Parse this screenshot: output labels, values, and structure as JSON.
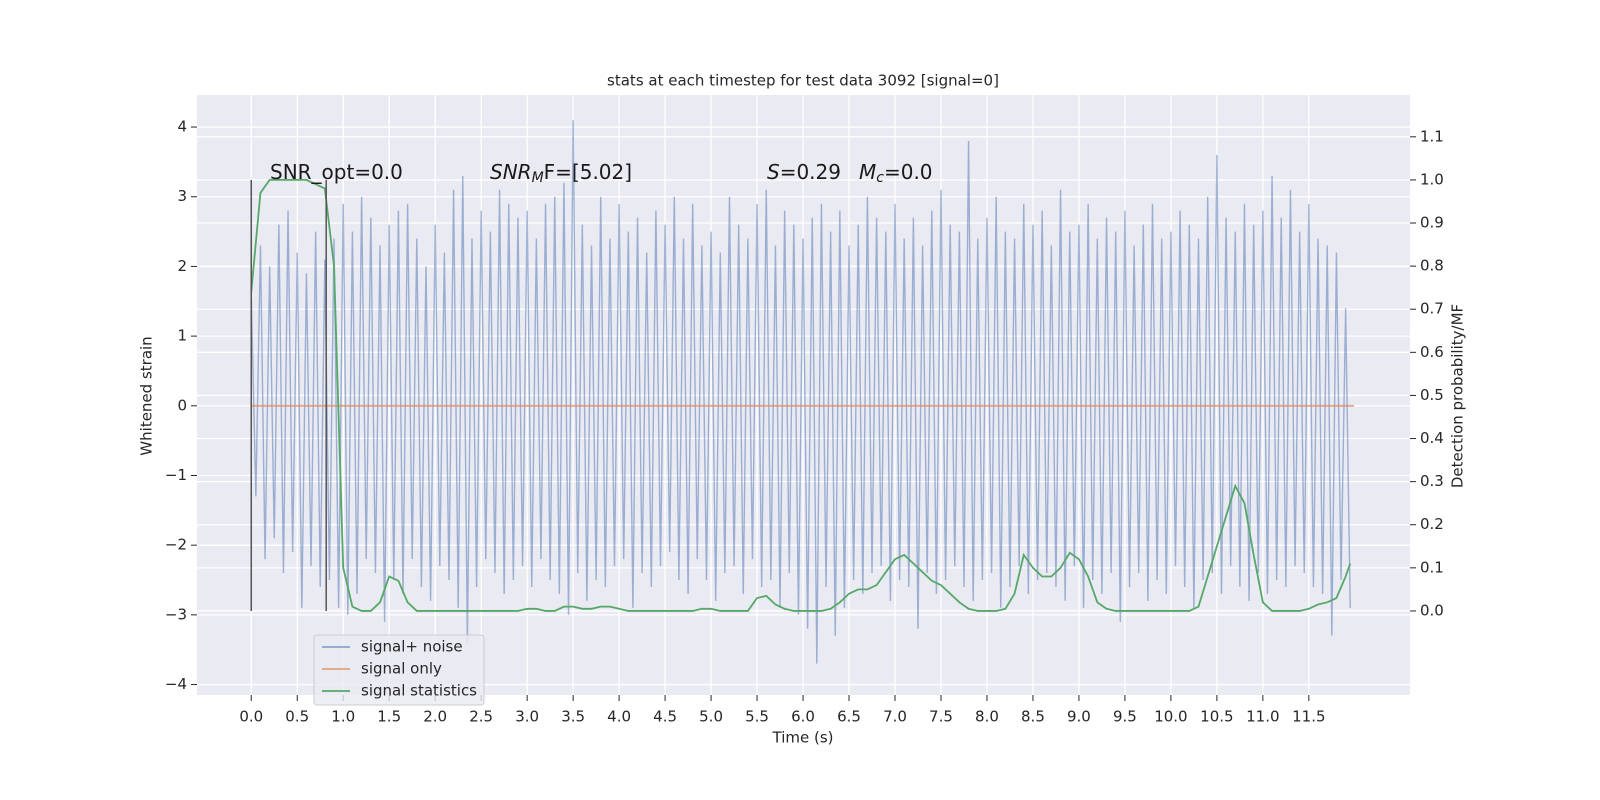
{
  "chart_data": {
    "type": "line",
    "title": "stats at each timestep for test data 3092 [signal=0]",
    "xlabel": "Time (s)",
    "ylabel": "Whitened strain",
    "y2label": "Detection probability/MF",
    "xlim": [
      -0.59,
      12.6
    ],
    "ylim": [
      -4.15,
      4.46
    ],
    "y2lim": [
      -0.195,
      1.197
    ],
    "xticks": [
      {
        "value": 0,
        "label": "0.0"
      },
      0.5,
      {
        "value": 1,
        "label": "1.0"
      },
      1.5,
      {
        "value": 2,
        "label": "2.0"
      },
      2.5,
      {
        "value": 3,
        "label": "3.0"
      },
      3.5,
      {
        "value": 4,
        "label": "4.0"
      },
      4.5,
      {
        "value": 5,
        "label": "5.0"
      },
      5.5,
      {
        "value": 6,
        "label": "6.0"
      },
      6.5,
      {
        "value": 7,
        "label": "7.0"
      },
      7.5,
      {
        "value": 8,
        "label": "8.0"
      },
      8.5,
      {
        "value": 9,
        "label": "9.0"
      },
      9.5,
      {
        "value": 10,
        "label": "10.0"
      },
      10.5,
      {
        "value": 11,
        "label": "11.0"
      },
      11.5
    ],
    "yticks": [
      {
        "value": -4,
        "label": "−4"
      },
      {
        "value": -3,
        "label": "−3"
      },
      {
        "value": -2,
        "label": "−2"
      },
      {
        "value": -1,
        "label": "−1"
      },
      0,
      1,
      2,
      3,
      4
    ],
    "y2ticks": [
      {
        "value": 0,
        "label": "0.0"
      },
      0.1,
      0.2,
      0.3,
      0.4,
      0.5,
      0.6,
      0.7,
      0.8,
      0.9,
      {
        "value": 1,
        "label": "1.0"
      },
      1.1
    ],
    "grid": true,
    "legend": "lower left",
    "annotations": [
      {
        "text": "SNR_opt=0.0"
      },
      {
        "base": "SNR",
        "sub": "M",
        "rest": "F=[5.02]"
      },
      {
        "base": "S",
        "rest": "=0.29"
      },
      {
        "base": "M",
        "sub": "c",
        "rest": "=0.0"
      }
    ],
    "vlines": {
      "x": [
        0,
        0.815
      ],
      "ymin": 0,
      "ymax": 1,
      "axis": "y2",
      "color": "#555555"
    },
    "series": [
      {
        "name": "signal+ noise",
        "color": "#4c72b0",
        "x": [
          0,
          0.05,
          0.1,
          0.15,
          0.2,
          0.25,
          0.3,
          0.35,
          0.4,
          0.45,
          0.5,
          0.55,
          0.6,
          0.65,
          0.7,
          0.75,
          0.8,
          0.85,
          0.9,
          0.95,
          1,
          1.05,
          1.1,
          1.15,
          1.2,
          1.25,
          1.3,
          1.35,
          1.4,
          1.45,
          1.5,
          1.55,
          1.6,
          1.65,
          1.7,
          1.75,
          1.8,
          1.85,
          1.9,
          1.95,
          2,
          2.05,
          2.1,
          2.15,
          2.2,
          2.25,
          2.3,
          2.35,
          2.4,
          2.45,
          2.5,
          2.55,
          2.6,
          2.65,
          2.7,
          2.75,
          2.8,
          2.85,
          2.9,
          2.95,
          3,
          3.05,
          3.1,
          3.15,
          3.2,
          3.25,
          3.3,
          3.35,
          3.4,
          3.45,
          3.5,
          3.55,
          3.6,
          3.65,
          3.7,
          3.75,
          3.8,
          3.85,
          3.9,
          3.95,
          4,
          4.05,
          4.1,
          4.15,
          4.2,
          4.25,
          4.3,
          4.35,
          4.4,
          4.45,
          4.5,
          4.55,
          4.6,
          4.65,
          4.7,
          4.75,
          4.8,
          4.85,
          4.9,
          4.95,
          5,
          5.05,
          5.1,
          5.15,
          5.2,
          5.25,
          5.3,
          5.35,
          5.4,
          5.45,
          5.5,
          5.55,
          5.6,
          5.65,
          5.7,
          5.75,
          5.8,
          5.85,
          5.9,
          5.95,
          6,
          6.05,
          6.1,
          6.15,
          6.2,
          6.25,
          6.3,
          6.35,
          6.4,
          6.45,
          6.5,
          6.55,
          6.6,
          6.65,
          6.7,
          6.75,
          6.8,
          6.85,
          6.9,
          6.95,
          7,
          7.05,
          7.1,
          7.15,
          7.2,
          7.25,
          7.3,
          7.35,
          7.4,
          7.45,
          7.5,
          7.55,
          7.6,
          7.65,
          7.7,
          7.75,
          7.8,
          7.85,
          7.9,
          7.95,
          8,
          8.05,
          8.1,
          8.15,
          8.2,
          8.25,
          8.3,
          8.35,
          8.4,
          8.45,
          8.5,
          8.55,
          8.6,
          8.65,
          8.7,
          8.75,
          8.8,
          8.85,
          8.9,
          8.95,
          9,
          9.05,
          9.1,
          9.15,
          9.2,
          9.25,
          9.3,
          9.35,
          9.4,
          9.45,
          9.5,
          9.55,
          9.6,
          9.65,
          9.7,
          9.75,
          9.8,
          9.85,
          9.9,
          9.95,
          10,
          10.05,
          10.1,
          10.15,
          10.2,
          10.25,
          10.3,
          10.35,
          10.4,
          10.45,
          10.5,
          10.55,
          10.6,
          10.65,
          10.7,
          10.75,
          10.8,
          10.85,
          10.9,
          10.95,
          11,
          11.05,
          11.1,
          11.15,
          11.2,
          11.25,
          11.3,
          11.35,
          11.4,
          11.45,
          11.5,
          11.55,
          11.6,
          11.65,
          11.7,
          11.75,
          11.8,
          11.85,
          11.9,
          11.95
        ],
        "values": [
          1.6,
          -1.3,
          2.3,
          -2.2,
          2.0,
          -1.9,
          2.6,
          -2.4,
          2.8,
          -2.1,
          2.2,
          -2.9,
          1.9,
          -2.3,
          2.5,
          -2.6,
          2.1,
          -2.5,
          2.4,
          -2.9,
          2.9,
          -3.0,
          2.5,
          -2.7,
          3.0,
          -2.2,
          2.7,
          -2.4,
          2.3,
          -3.1,
          2.6,
          -2.5,
          2.8,
          -2.7,
          2.9,
          -2.2,
          2.4,
          -2.6,
          2.0,
          -2.8,
          2.6,
          -2.3,
          2.2,
          -2.5,
          3.1,
          -2.9,
          3.3,
          -3.4,
          2.4,
          -2.6,
          2.8,
          -2.2,
          2.5,
          -2.4,
          3.1,
          -2.7,
          2.9,
          -2.5,
          2.7,
          -2.3,
          2.8,
          -2.6,
          2.4,
          -2.2,
          2.9,
          -2.5,
          3.0,
          -2.7,
          3.2,
          -3.0,
          4.1,
          -2.4,
          2.6,
          -2.8,
          2.3,
          -2.5,
          3.0,
          -2.6,
          2.4,
          -2.3,
          2.9,
          -2.2,
          2.5,
          -2.9,
          2.7,
          -2.4,
          2.2,
          -2.6,
          2.8,
          -2.3,
          2.6,
          -2.1,
          3.0,
          -2.5,
          2.4,
          -2.7,
          2.9,
          -2.2,
          2.3,
          -2.5,
          2.5,
          -2.8,
          2.2,
          -2.4,
          3.0,
          -2.3,
          2.6,
          -2.7,
          2.4,
          -2.2,
          2.9,
          -2.6,
          3.1,
          -2.5,
          2.3,
          -2.9,
          2.8,
          -2.4,
          2.6,
          -3.0,
          2.4,
          -3.2,
          2.7,
          -3.7,
          2.9,
          -2.6,
          2.5,
          -3.3,
          2.8,
          -2.9,
          2.3,
          -2.5,
          2.6,
          -2.7,
          3.0,
          -2.4,
          2.7,
          -2.3,
          2.5,
          -2.8,
          2.9,
          -2.5,
          2.4,
          -2.6,
          2.7,
          -3.2,
          2.3,
          -2.4,
          2.8,
          -2.7,
          3.1,
          -2.5,
          2.6,
          -2.3,
          2.5,
          -2.6,
          3.8,
          -2.8,
          2.4,
          -2.5,
          2.7,
          -2.4,
          3.0,
          -2.9,
          2.5,
          -2.6,
          2.4,
          -2.3,
          2.9,
          -2.7,
          2.6,
          -2.5,
          2.8,
          -2.4,
          2.3,
          -2.6,
          3.1,
          -2.8,
          2.5,
          -2.3,
          2.6,
          -2.9,
          2.9,
          -2.5,
          2.4,
          -2.7,
          2.7,
          -2.4,
          2.5,
          -3.1,
          2.8,
          -2.6,
          2.3,
          -2.4,
          2.6,
          -2.8,
          2.9,
          -2.5,
          2.4,
          -2.7,
          2.5,
          -2.3,
          2.8,
          -2.6,
          2.6,
          -2.9,
          2.4,
          -2.5,
          3.0,
          -2.4,
          3.6,
          -2.7,
          2.7,
          -2.3,
          2.5,
          -2.6,
          2.9,
          -2.8,
          2.6,
          -2.4,
          2.8,
          -2.7,
          3.3,
          -2.5,
          2.7,
          -2.6,
          3.1,
          -2.3,
          2.5,
          -2.4,
          2.9,
          -2.6,
          2.4,
          -2.7,
          2.3,
          -3.3,
          2.2,
          -2.5,
          1.4,
          -2.9
        ]
      },
      {
        "name": "signal only",
        "color": "#dd8452",
        "x": [
          0,
          11.99
        ],
        "values": [
          0,
          0
        ]
      },
      {
        "name": "signal statistics",
        "color": "#55a868",
        "axis": "y2",
        "x": [
          0,
          0.1,
          0.2,
          0.3,
          0.4,
          0.5,
          0.6,
          0.7,
          0.8,
          0.9,
          1,
          1.1,
          1.2,
          1.3,
          1.4,
          1.5,
          1.6,
          1.7,
          1.8,
          1.9,
          2,
          2.1,
          2.2,
          2.3,
          2.4,
          2.5,
          2.6,
          2.7,
          2.8,
          2.9,
          3,
          3.1,
          3.2,
          3.3,
          3.4,
          3.5,
          3.6,
          3.7,
          3.8,
          3.9,
          4,
          4.1,
          4.2,
          4.3,
          4.4,
          4.5,
          4.6,
          4.7,
          4.8,
          4.9,
          5,
          5.1,
          5.2,
          5.3,
          5.4,
          5.5,
          5.6,
          5.7,
          5.8,
          5.9,
          6,
          6.1,
          6.2,
          6.3,
          6.4,
          6.5,
          6.6,
          6.7,
          6.8,
          6.9,
          7,
          7.1,
          7.2,
          7.3,
          7.4,
          7.5,
          7.6,
          7.7,
          7.8,
          7.9,
          8,
          8.1,
          8.2,
          8.3,
          8.4,
          8.5,
          8.6,
          8.7,
          8.8,
          8.9,
          9,
          9.1,
          9.2,
          9.3,
          9.4,
          9.5,
          9.6,
          9.7,
          9.8,
          9.9,
          10,
          10.1,
          10.2,
          10.3,
          10.4,
          10.5,
          10.6,
          10.7,
          10.8,
          10.9,
          11,
          11.1,
          11.2,
          11.3,
          11.4,
          11.5,
          11.6,
          11.7,
          11.8,
          11.9,
          11.95
        ],
        "values": [
          0.74,
          0.97,
          1.0,
          1.0,
          1.0,
          1.0,
          1.0,
          0.99,
          0.98,
          0.8,
          0.1,
          0.01,
          0.0,
          0.0,
          0.02,
          0.08,
          0.07,
          0.02,
          0.0,
          0.0,
          0,
          0,
          0,
          0,
          0,
          0,
          0,
          0,
          0,
          0,
          0.005,
          0.005,
          0.0,
          0.0,
          0.01,
          0.01,
          0.005,
          0.005,
          0.01,
          0.01,
          0.005,
          0.0,
          0,
          0,
          0,
          0,
          0,
          0,
          0,
          0.005,
          0.005,
          0,
          0,
          0,
          0,
          0.03,
          0.035,
          0.015,
          0.005,
          0,
          0,
          0,
          0,
          0.005,
          0.02,
          0.04,
          0.05,
          0.05,
          0.06,
          0.09,
          0.12,
          0.13,
          0.11,
          0.09,
          0.07,
          0.06,
          0.04,
          0.02,
          0.005,
          0.0,
          0,
          0,
          0.005,
          0.04,
          0.13,
          0.1,
          0.08,
          0.08,
          0.1,
          0.135,
          0.12,
          0.08,
          0.02,
          0.005,
          0,
          0,
          0,
          0,
          0,
          0,
          0,
          0,
          0,
          0.01,
          0.08,
          0.15,
          0.22,
          0.29,
          0.25,
          0.13,
          0.02,
          0.0,
          0.0,
          0.0,
          0.0,
          0.005,
          0.015,
          0.02,
          0.03,
          0.08,
          0.11
        ]
      }
    ]
  }
}
